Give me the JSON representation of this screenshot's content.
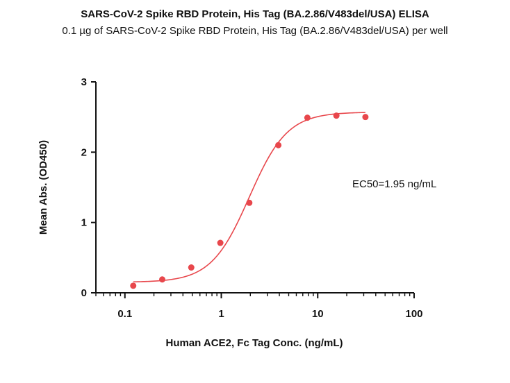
{
  "chart_data": {
    "type": "scatter",
    "title": "SARS-CoV-2 Spike RBD Protein, His Tag (BA.2.86/V483del/USA) ELISA",
    "subtitle": "0.1 µg of SARS-CoV-2 Spike RBD Protein, His Tag (BA.2.86/V483del/USA) per well",
    "xlabel": "Human ACE2, Fc Tag Conc. (ng/mL)",
    "ylabel": "Mean Abs. (OD450)",
    "x_scale": "log",
    "xlim": [
      0.05,
      100
    ],
    "ylim": [
      0,
      3
    ],
    "x_ticks": [
      0.1,
      1,
      10,
      100
    ],
    "x_tick_labels": [
      "0.1",
      "1",
      "10",
      "100"
    ],
    "y_ticks": [
      0,
      1,
      2,
      3
    ],
    "y_tick_labels": [
      "0",
      "1",
      "2",
      "3"
    ],
    "grid": false,
    "legend": "none",
    "color": "#e8474c",
    "series": [
      {
        "x": [
          0.122,
          0.244,
          0.488,
          0.977,
          1.953,
          3.906,
          7.813,
          15.625,
          31.25
        ],
        "y": [
          0.1,
          0.19,
          0.36,
          0.71,
          1.28,
          2.1,
          2.49,
          2.52,
          2.5
        ],
        "fit": {
          "model": "4PL",
          "bottom": 0.15,
          "top": 2.57,
          "ec50": 1.95,
          "hill": 2.2
        }
      }
    ],
    "annotation": "EC50=1.95 ng/mL"
  }
}
